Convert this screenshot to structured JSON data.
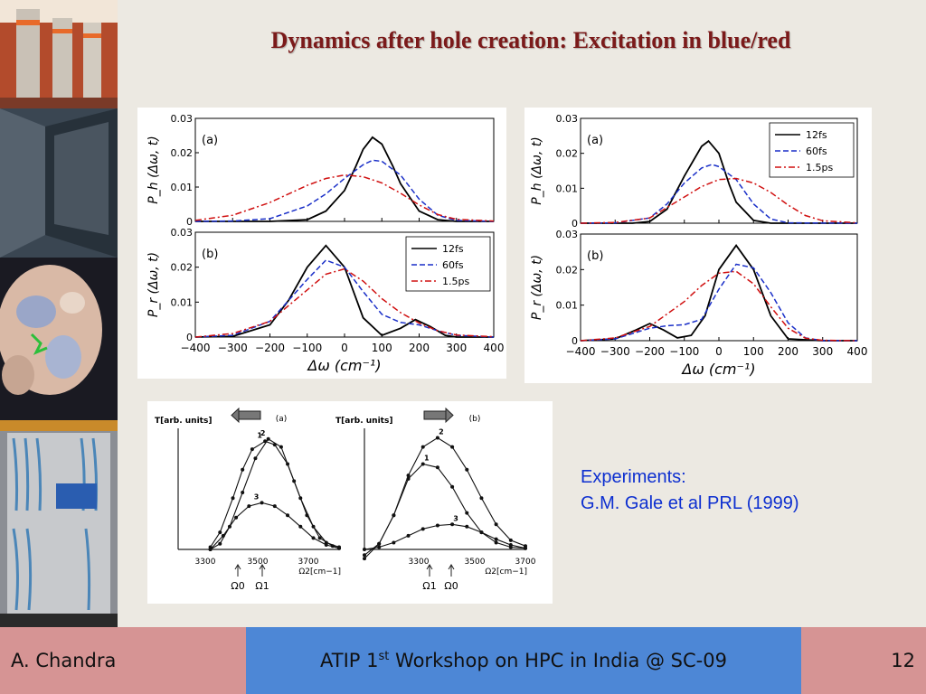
{
  "slide": {
    "title": "Dynamics after hole creation: Excitation in blue/red",
    "experiments_label": "Experiments:",
    "experiments_ref": "G.M. Gale et al PRL (1999)"
  },
  "footer": {
    "author": "A. Chandra",
    "event_pre": "ATIP 1",
    "event_sup": "st",
    "event_post": " Workshop on HPC in India @ SC-09",
    "page": "12"
  },
  "colors": {
    "c12fs": "#000000",
    "c60fs": "#1a2fc8",
    "c15ps": "#d01010",
    "title": "#7b1a1a",
    "note": "#0d2fd0"
  },
  "chart_data": [
    {
      "type": "line",
      "id": "blue",
      "panels": [
        {
          "label": "(a)",
          "ylabel": "P_h (Δω, t)",
          "ylim": [
            0,
            0.03
          ],
          "yticks": [
            "0",
            "0.01",
            "0.02",
            "0.03"
          ],
          "series": [
            {
              "name": "12fs",
              "x": [
                -400,
                -300,
                -200,
                -100,
                -50,
                0,
                30,
                50,
                75,
                100,
                130,
                150,
                200,
                250,
                300,
                400
              ],
              "y": [
                0,
                0,
                0,
                0.0005,
                0.003,
                0.009,
                0.016,
                0.021,
                0.0245,
                0.0225,
                0.016,
                0.011,
                0.003,
                0.0005,
                0,
                0
              ]
            },
            {
              "name": "60fs",
              "x": [
                -400,
                -300,
                -200,
                -100,
                -50,
                0,
                50,
                75,
                100,
                150,
                200,
                250,
                300,
                400
              ],
              "y": [
                0,
                0.0001,
                0.0008,
                0.0045,
                0.008,
                0.0125,
                0.0165,
                0.0178,
                0.0175,
                0.0135,
                0.0065,
                0.0018,
                0.0003,
                0
              ]
            },
            {
              "name": "1.5ps",
              "x": [
                -400,
                -300,
                -200,
                -100,
                -50,
                0,
                50,
                100,
                150,
                200,
                250,
                300,
                400
              ],
              "y": [
                0.0003,
                0.0018,
                0.0055,
                0.0105,
                0.0125,
                0.0135,
                0.013,
                0.0112,
                0.0082,
                0.0048,
                0.002,
                0.0006,
                0.0001
              ]
            }
          ]
        },
        {
          "label": "(b)",
          "ylabel": "P_r (Δω, t)",
          "ylim": [
            0,
            0.03
          ],
          "yticks": [
            "0",
            "0.01",
            "0.02",
            "0.03"
          ],
          "xlabel": "Δω (cm⁻¹)",
          "xlim": [
            -400,
            400
          ],
          "xticks": [
            "-400",
            "-300",
            "-200",
            "-100",
            "0",
            "100",
            "200",
            "300",
            "400"
          ],
          "legend": "top-right",
          "series": [
            {
              "name": "12fs",
              "x": [
                -400,
                -300,
                -200,
                -150,
                -100,
                -50,
                0,
                50,
                100,
                150,
                190,
                230,
                270,
                300,
                400
              ],
              "y": [
                0,
                0.0002,
                0.0035,
                0.0105,
                0.02,
                0.0262,
                0.02,
                0.0055,
                0.0005,
                0.0025,
                0.005,
                0.003,
                0.0005,
                0,
                0
              ]
            },
            {
              "name": "60fs",
              "x": [
                -400,
                -300,
                -200,
                -100,
                -50,
                0,
                50,
                100,
                150,
                200,
                250,
                300,
                400
              ],
              "y": [
                0,
                0.0005,
                0.0045,
                0.0165,
                0.022,
                0.02,
                0.013,
                0.0065,
                0.0042,
                0.0035,
                0.0018,
                0.0005,
                0
              ]
            },
            {
              "name": "1.5ps",
              "x": [
                -400,
                -300,
                -200,
                -100,
                -50,
                0,
                50,
                100,
                150,
                200,
                250,
                300,
                400
              ],
              "y": [
                0,
                0.001,
                0.0045,
                0.0135,
                0.018,
                0.0195,
                0.016,
                0.011,
                0.007,
                0.004,
                0.0018,
                0.0006,
                0.0001
              ]
            }
          ]
        }
      ]
    },
    {
      "type": "line",
      "id": "red",
      "panels": [
        {
          "label": "(a)",
          "ylabel": "P_h (Δω, t)",
          "ylim": [
            0,
            0.03
          ],
          "yticks": [
            "0",
            "0.01",
            "0.02",
            "0.03"
          ],
          "legend": "top-right",
          "series": [
            {
              "name": "12fs",
              "x": [
                -400,
                -250,
                -200,
                -150,
                -100,
                -50,
                -30,
                0,
                30,
                50,
                100,
                150,
                400
              ],
              "y": [
                0,
                0,
                0.0005,
                0.004,
                0.0135,
                0.022,
                0.0235,
                0.02,
                0.011,
                0.006,
                0.0008,
                0,
                0
              ]
            },
            {
              "name": "60fs",
              "x": [
                -400,
                -300,
                -200,
                -150,
                -100,
                -50,
                -20,
                0,
                50,
                100,
                150,
                200,
                400
              ],
              "y": [
                0,
                0.0001,
                0.0015,
                0.0055,
                0.0115,
                0.0158,
                0.0168,
                0.0162,
                0.0125,
                0.0055,
                0.0012,
                0.0001,
                0
              ]
            },
            {
              "name": "1.5ps",
              "x": [
                -400,
                -300,
                -200,
                -100,
                -50,
                0,
                50,
                100,
                150,
                200,
                250,
                300,
                400
              ],
              "y": [
                0,
                0.0002,
                0.0015,
                0.0075,
                0.0105,
                0.0125,
                0.0128,
                0.0115,
                0.0088,
                0.0052,
                0.0022,
                0.0007,
                0.0001
              ]
            }
          ]
        },
        {
          "label": "(b)",
          "ylabel": "P_r (Δω, t)",
          "ylim": [
            0,
            0.03
          ],
          "yticks": [
            "0",
            "0.01",
            "0.02",
            "0.03"
          ],
          "xlabel": "Δω (cm⁻¹)",
          "xlim": [
            -400,
            400
          ],
          "xticks": [
            "-400",
            "-300",
            "-200",
            "-100",
            "0",
            "100",
            "200",
            "300",
            "400"
          ],
          "series": [
            {
              "name": "12fs",
              "x": [
                -400,
                -300,
                -240,
                -200,
                -160,
                -120,
                -80,
                -40,
                0,
                50,
                100,
                150,
                200,
                300,
                400
              ],
              "y": [
                0,
                0.0005,
                0.003,
                0.0048,
                0.003,
                0.0008,
                0.0015,
                0.007,
                0.02,
                0.0268,
                0.02,
                0.007,
                0.0005,
                0,
                0
              ]
            },
            {
              "name": "60fs",
              "x": [
                -400,
                -300,
                -200,
                -150,
                -100,
                -50,
                0,
                50,
                100,
                150,
                200,
                250,
                300,
                400
              ],
              "y": [
                0,
                0.0005,
                0.0035,
                0.0042,
                0.0045,
                0.006,
                0.0145,
                0.0215,
                0.0205,
                0.0135,
                0.005,
                0.0008,
                0,
                0
              ]
            },
            {
              "name": "1.5ps",
              "x": [
                -400,
                -300,
                -200,
                -100,
                -50,
                0,
                50,
                100,
                150,
                200,
                250,
                300,
                400
              ],
              "y": [
                0,
                0.0008,
                0.004,
                0.011,
                0.0155,
                0.019,
                0.0195,
                0.016,
                0.0095,
                0.0035,
                0.0007,
                0.0001,
                0
              ]
            }
          ]
        }
      ]
    },
    {
      "type": "line",
      "id": "experiment",
      "panels": [
        {
          "label": "(a)",
          "ylabel": "T[arb. units]",
          "xlabel": "Ω2[cm−1]",
          "xticks": [
            "3300",
            "3500",
            "3700"
          ],
          "markers": [
            "Ω0",
            "Ω1"
          ],
          "series": [
            {
              "name": "1",
              "x": [
                3300,
                3330,
                3370,
                3400,
                3430,
                3470,
                3500,
                3540,
                3580,
                3620,
                3660,
                3700
              ],
              "y": [
                0.02,
                0.15,
                0.45,
                0.7,
                0.88,
                0.95,
                0.92,
                0.75,
                0.45,
                0.2,
                0.06,
                0.02
              ]
            },
            {
              "name": "2",
              "x": [
                3300,
                3330,
                3360,
                3400,
                3440,
                3480,
                3520,
                3560,
                3600,
                3640,
                3680,
                3700
              ],
              "y": [
                0,
                0.05,
                0.2,
                0.5,
                0.8,
                0.97,
                0.9,
                0.6,
                0.3,
                0.1,
                0.03,
                0.01
              ]
            },
            {
              "name": "3",
              "x": [
                3300,
                3340,
                3380,
                3420,
                3460,
                3500,
                3540,
                3580,
                3620,
                3660,
                3700
              ],
              "y": [
                0,
                0.12,
                0.28,
                0.38,
                0.41,
                0.38,
                0.3,
                0.2,
                0.1,
                0.04,
                0.01
              ]
            }
          ]
        },
        {
          "label": "(b)",
          "ylabel": "T[arb. units]",
          "xlabel": "Ω2[cm−1]",
          "xticks": [
            "3300",
            "3500",
            "3700"
          ],
          "markers": [
            "Ω1",
            "Ω0"
          ],
          "series": [
            {
              "name": "2",
              "x": [
                3150,
                3200,
                3250,
                3300,
                3350,
                3400,
                3450,
                3500,
                3550,
                3600,
                3650,
                3700
              ],
              "y": [
                -0.08,
                0.05,
                0.3,
                0.65,
                0.9,
                0.98,
                0.9,
                0.7,
                0.45,
                0.22,
                0.08,
                0.03
              ]
            },
            {
              "name": "1",
              "x": [
                3150,
                3200,
                3250,
                3300,
                3350,
                3400,
                3450,
                3500,
                3550,
                3600,
                3650,
                3700
              ],
              "y": [
                -0.05,
                0.05,
                0.3,
                0.62,
                0.75,
                0.72,
                0.55,
                0.32,
                0.15,
                0.06,
                0.02,
                0.01
              ]
            },
            {
              "name": "3",
              "x": [
                3150,
                3200,
                3250,
                3300,
                3350,
                3400,
                3450,
                3500,
                3550,
                3600,
                3650,
                3700
              ],
              "y": [
                0,
                0.02,
                0.06,
                0.12,
                0.18,
                0.21,
                0.22,
                0.2,
                0.15,
                0.09,
                0.04,
                0.01
              ]
            }
          ]
        }
      ]
    }
  ]
}
